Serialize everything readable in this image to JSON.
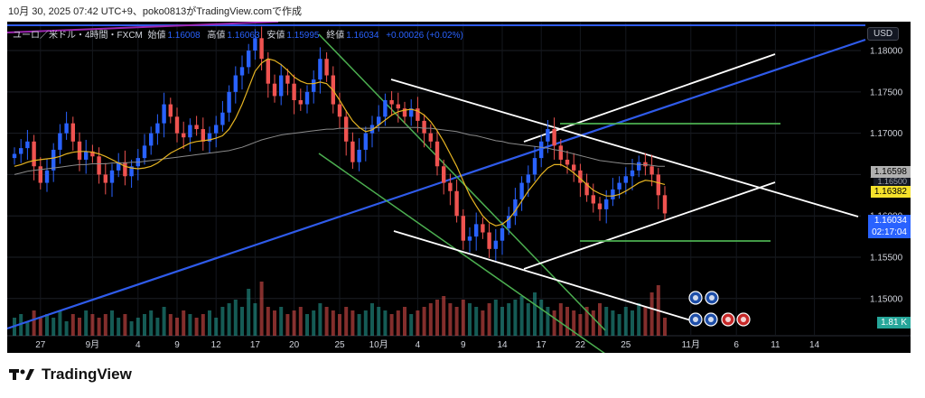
{
  "header_text": "10月 30, 2025 07:42 UTC+9、poko0813がTradingView.comで作成",
  "legend": {
    "symbol": "ユーロ／米ドル・4時間・FXCM",
    "open_label": "始値",
    "open": "1.16008",
    "high_label": "高値",
    "high": "1.16063",
    "low_label": "安値",
    "low": "1.15995",
    "close_label": "終値",
    "close": "1.16034",
    "change": "+0.00026 (+0.02%)"
  },
  "currency_button": "USD",
  "brand": {
    "name": "TradingView",
    "icon": "tradingview-logo-icon"
  },
  "price_tags": {
    "ma_long": "1.16598",
    "ma_short": "1.16382",
    "partial": "1.16500",
    "last_price": "1.16034",
    "countdown": "02:17:04",
    "volume": "1.81 K"
  },
  "colors": {
    "background": "#000000",
    "up": "#2962ff",
    "down": "#ef5350",
    "vol_up": "#26a69a",
    "vol_down": "#ef5350",
    "ma_short": "#e6b422",
    "ma_long": "#8a8a8a",
    "blue_trend": "#2f5bea",
    "green_line": "#4caf50",
    "white_line": "#ffffff",
    "purple": "#9c27b0"
  },
  "chart_data": {
    "type": "candlestick",
    "y_range": [
      1.1455,
      1.1835
    ],
    "y_ticks": [
      "1.18000",
      "1.17500",
      "1.17000",
      "1.16500",
      "1.16000",
      "1.15500",
      "1.15000"
    ],
    "y_tick_values": [
      1.18,
      1.175,
      1.17,
      1.165,
      1.16,
      1.155,
      1.15
    ],
    "x_ticks": [
      {
        "label": "27",
        "index": 4
      },
      {
        "label": "9月",
        "index": 12
      },
      {
        "label": "4",
        "index": 19
      },
      {
        "label": "9",
        "index": 25
      },
      {
        "label": "12",
        "index": 31
      },
      {
        "label": "17",
        "index": 37
      },
      {
        "label": "20",
        "index": 43
      },
      {
        "label": "25",
        "index": 50
      },
      {
        "label": "10月",
        "index": 56
      },
      {
        "label": "4",
        "index": 62
      },
      {
        "label": "9",
        "index": 69
      },
      {
        "label": "14",
        "index": 75
      },
      {
        "label": "17",
        "index": 81
      },
      {
        "label": "22",
        "index": 87
      },
      {
        "label": "25",
        "index": 94
      },
      {
        "label": "11月",
        "index": 104
      },
      {
        "label": "6",
        "index": 111
      },
      {
        "label": "11",
        "index": 117
      },
      {
        "label": "14",
        "index": 123
      }
    ],
    "close": [
      1.1675,
      1.1682,
      1.169,
      1.166,
      1.164,
      1.1655,
      1.168,
      1.17,
      1.1712,
      1.169,
      1.1668,
      1.1678,
      1.1672,
      1.165,
      1.164,
      1.1655,
      1.1665,
      1.1648,
      1.166,
      1.167,
      1.1685,
      1.17,
      1.1712,
      1.1735,
      1.172,
      1.17,
      1.1695,
      1.171,
      1.1705,
      1.169,
      1.17,
      1.171,
      1.1725,
      1.175,
      1.177,
      1.178,
      1.18,
      1.1815,
      1.179,
      1.176,
      1.1745,
      1.177,
      1.176,
      1.174,
      1.1735,
      1.175,
      1.1765,
      1.179,
      1.177,
      1.1735,
      1.172,
      1.169,
      1.1665,
      1.168,
      1.17,
      1.171,
      1.172,
      1.174,
      1.1735,
      1.173,
      1.172,
      1.173,
      1.1715,
      1.17,
      1.169,
      1.166,
      1.164,
      1.163,
      1.16,
      1.157,
      1.1575,
      1.159,
      1.158,
      1.156,
      1.157,
      1.1585,
      1.16,
      1.162,
      1.164,
      1.165,
      1.167,
      1.169,
      1.1705,
      1.1685,
      1.1668,
      1.1662,
      1.1655,
      1.164,
      1.1625,
      1.1615,
      1.1608,
      1.162,
      1.1632,
      1.164,
      1.1648,
      1.1655,
      1.1665,
      1.166,
      1.165,
      1.1625,
      1.1603
    ],
    "ma_short": [
      1.166,
      1.1662,
      1.1665,
      1.1667,
      1.1668,
      1.1669,
      1.167,
      1.1672,
      1.1675,
      1.1677,
      1.1678,
      1.1678,
      1.1677,
      1.1675,
      1.1672,
      1.1668,
      1.1664,
      1.166,
      1.1658,
      1.1657,
      1.1658,
      1.166,
      1.1664,
      1.167,
      1.1676,
      1.168,
      1.1684,
      1.1688,
      1.169,
      1.1691,
      1.1692,
      1.1694,
      1.1697,
      1.1705,
      1.1718,
      1.1735,
      1.1755,
      1.1775,
      1.1785,
      1.179,
      1.1788,
      1.1783,
      1.1776,
      1.1768,
      1.1763,
      1.176,
      1.176,
      1.1762,
      1.176,
      1.1752,
      1.174,
      1.1727,
      1.1715,
      1.1707,
      1.1702,
      1.1704,
      1.171,
      1.1716,
      1.1722,
      1.1726,
      1.1728,
      1.1729,
      1.1727,
      1.1722,
      1.1714,
      1.1703,
      1.169,
      1.1675,
      1.166,
      1.1642,
      1.1625,
      1.1612,
      1.16,
      1.1592,
      1.1588,
      1.159,
      1.1596,
      1.1606,
      1.1618,
      1.163,
      1.164,
      1.165,
      1.1658,
      1.1662,
      1.1662,
      1.1658,
      1.1652,
      1.1645,
      1.1638,
      1.1631,
      1.1627,
      1.1624,
      1.1624,
      1.1626,
      1.163,
      1.1635,
      1.164,
      1.1643,
      1.1642,
      1.164,
      1.1638
    ],
    "ma_long": [
      1.165,
      1.1652,
      1.1654,
      1.1655,
      1.1656,
      1.1657,
      1.1658,
      1.1659,
      1.166,
      1.1661,
      1.1662,
      1.1662,
      1.1663,
      1.1663,
      1.1663,
      1.1664,
      1.1664,
      1.1664,
      1.1665,
      1.1665,
      1.1666,
      1.1667,
      1.1668,
      1.1669,
      1.167,
      1.1671,
      1.1672,
      1.1673,
      1.1674,
      1.1675,
      1.1676,
      1.1677,
      1.1678,
      1.1679,
      1.1681,
      1.1683,
      1.1686,
      1.1689,
      1.1692,
      1.1694,
      1.1696,
      1.1698,
      1.1699,
      1.17,
      1.1701,
      1.1702,
      1.1703,
      1.1704,
      1.1705,
      1.1705,
      1.1706,
      1.1706,
      1.1706,
      1.1706,
      1.1706,
      1.1706,
      1.1707,
      1.1707,
      1.1707,
      1.1707,
      1.1707,
      1.1707,
      1.1707,
      1.1706,
      1.1706,
      1.1705,
      1.1704,
      1.1703,
      1.1702,
      1.17,
      1.1698,
      1.1697,
      1.1695,
      1.1693,
      1.1691,
      1.169,
      1.1688,
      1.1687,
      1.1686,
      1.1685,
      1.1684,
      1.1683,
      1.1682,
      1.168,
      1.1679,
      1.1677,
      1.1675,
      1.1673,
      1.1671,
      1.1669,
      1.1667,
      1.1666,
      1.1665,
      1.1664,
      1.1663,
      1.1663,
      1.1662,
      1.1662,
      1.1661,
      1.166,
      1.166
    ],
    "volume": [
      0.5,
      0.6,
      0.4,
      0.7,
      0.5,
      0.6,
      0.5,
      0.7,
      0.4,
      0.6,
      0.5,
      0.7,
      0.6,
      0.5,
      0.6,
      0.7,
      0.5,
      0.6,
      0.4,
      0.5,
      0.6,
      0.7,
      0.5,
      0.8,
      0.6,
      0.5,
      0.7,
      0.6,
      0.5,
      0.6,
      0.7,
      0.5,
      0.8,
      0.9,
      1.0,
      0.8,
      1.3,
      0.9,
      1.5,
      0.8,
      0.7,
      0.8,
      0.6,
      0.7,
      0.8,
      0.6,
      0.7,
      0.9,
      0.8,
      0.7,
      0.6,
      0.8,
      0.7,
      0.6,
      0.7,
      0.9,
      0.8,
      0.7,
      0.6,
      0.7,
      0.8,
      0.6,
      0.7,
      0.8,
      0.9,
      1.0,
      1.1,
      0.9,
      0.8,
      1.0,
      0.9,
      0.8,
      0.7,
      0.9,
      1.0,
      0.8,
      0.9,
      1.0,
      1.1,
      0.9,
      1.2,
      1.0,
      0.8,
      0.7,
      0.9,
      0.8,
      0.7,
      0.6,
      0.8,
      0.7,
      0.9,
      0.8,
      0.7,
      0.6,
      0.8,
      0.7,
      0.9,
      0.8,
      1.2,
      1.4,
      0.5
    ]
  }
}
